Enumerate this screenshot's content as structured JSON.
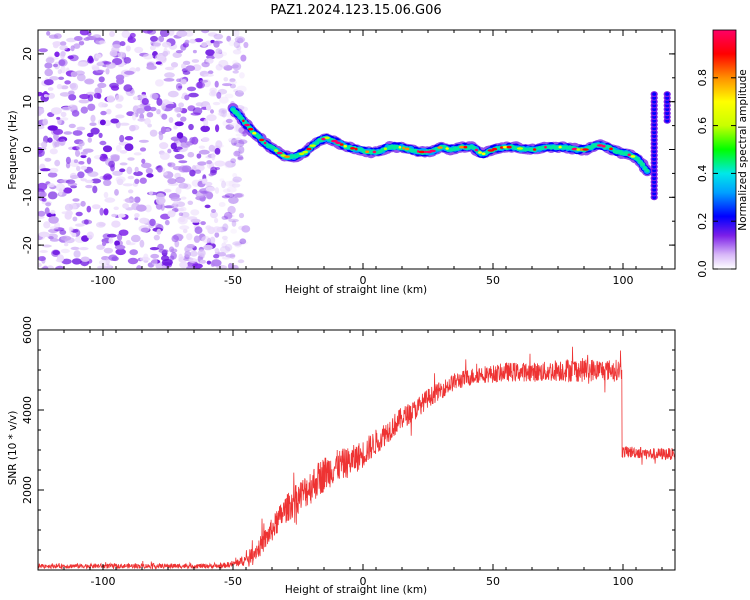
{
  "figure": {
    "title": "PAZ1.2024.123.15.06.G06"
  },
  "chart_data": [
    {
      "type": "heatmap",
      "title": "PAZ1.2024.123.15.06.G06",
      "xlabel": "Height of straight line (km)",
      "ylabel": "Frequency (Hz)",
      "xlim": [
        -125,
        120
      ],
      "ylim": [
        -25,
        25
      ],
      "xticks": [
        "-100",
        "-50",
        "0",
        "50",
        "100"
      ],
      "yticks": [
        "-20",
        "-10",
        "0",
        "10",
        "20"
      ],
      "colorbar": {
        "label": "Normalized spectral amplitude",
        "range": [
          0,
          1
        ],
        "ticks": [
          "0.0",
          "0.2",
          "0.4",
          "0.6",
          "0.8"
        ],
        "colormap": [
          "#ffffff",
          "#d8b8f8",
          "#7c1fe8",
          "#0000ff",
          "#00a0ff",
          "#00e8e8",
          "#00ff00",
          "#c8ff00",
          "#ffff00",
          "#ff9000",
          "#ff0000",
          "#ff0066"
        ]
      },
      "noise_region_km": [
        -125,
        -45
      ],
      "ridge": {
        "x": [
          -50,
          -46,
          -42,
          -38,
          -34,
          -30,
          -26,
          -22,
          -18,
          -14,
          -10,
          -6,
          -2,
          2,
          6,
          10,
          14,
          18,
          22,
          26,
          30,
          34,
          38,
          42,
          46,
          50,
          54,
          58,
          62,
          66,
          70,
          74,
          78,
          82,
          86,
          90,
          94,
          98,
          102,
          106,
          110
        ],
        "y": [
          8.5,
          6,
          3.5,
          1.5,
          0,
          -1.5,
          -1.5,
          -0.5,
          1.5,
          2.5,
          1.5,
          0.5,
          0,
          -0.5,
          -0.5,
          0.5,
          0.5,
          0,
          -0.5,
          -0.5,
          0.5,
          0,
          0.5,
          0.5,
          -1,
          0,
          0.5,
          0.5,
          0,
          0,
          0.5,
          0.5,
          0.5,
          0,
          0,
          1,
          0.5,
          -0.5,
          -1,
          -2,
          -5
        ]
      },
      "edge_segments": [
        {
          "x": 112,
          "y_from": -10,
          "y_to": 12
        },
        {
          "x": 117,
          "y_from": 6,
          "y_to": 12
        }
      ]
    },
    {
      "type": "line",
      "xlabel": "Height of straight line (km)",
      "ylabel": "SNR (10 * v/v)",
      "xlim": [
        -125,
        120
      ],
      "ylim": [
        0,
        6000
      ],
      "xticks": [
        "-100",
        "-50",
        "0",
        "50",
        "100"
      ],
      "yticks": [
        "2000",
        "4000",
        "6000"
      ],
      "series": [
        {
          "color": "#ee3333",
          "x": [
            -125,
            -100,
            -75,
            -55,
            -50,
            -45,
            -40,
            -35,
            -30,
            -25,
            -20,
            -15,
            -10,
            -5,
            0,
            5,
            10,
            15,
            20,
            25,
            30,
            35,
            40,
            45,
            50,
            55,
            60,
            65,
            70,
            75,
            80,
            85,
            90,
            95,
            99,
            100,
            105,
            110,
            115,
            120
          ],
          "y": [
            100,
            100,
            100,
            100,
            150,
            250,
            550,
            1000,
            1500,
            1800,
            2100,
            2400,
            2600,
            2700,
            2900,
            3200,
            3500,
            3800,
            4000,
            4300,
            4500,
            4700,
            4800,
            4900,
            4900,
            4950,
            4950,
            4950,
            4950,
            5000,
            5000,
            5000,
            5000,
            5000,
            5000,
            2950,
            2950,
            2900,
            2900,
            2900
          ],
          "noise_amplitude": [
            60,
            60,
            60,
            60,
            80,
            150,
            250,
            300,
            350,
            400,
            450,
            450,
            400,
            380,
            350,
            320,
            300,
            280,
            260,
            240,
            220,
            220,
            220,
            220,
            220,
            240,
            240,
            240,
            260,
            280,
            300,
            300,
            280,
            260,
            260,
            150,
            150,
            150,
            150,
            150
          ]
        }
      ]
    }
  ]
}
